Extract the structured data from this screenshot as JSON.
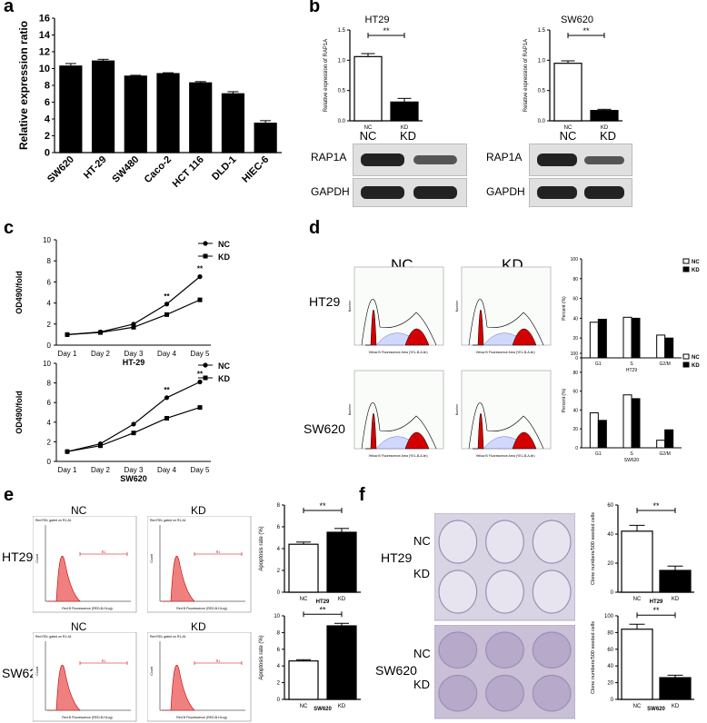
{
  "panel_letters": {
    "a": "a",
    "b": "b",
    "c": "c",
    "d": "d",
    "e": "e",
    "f": "f"
  },
  "chart_data": [
    {
      "id": "a",
      "type": "bar",
      "categories": [
        "SW620",
        "HT-29",
        "SW480",
        "Caco-2",
        "HCT 116",
        "DLD-1",
        "HIEC-6"
      ],
      "values": [
        10.3,
        10.9,
        9.1,
        9.4,
        8.3,
        7.0,
        3.5
      ],
      "errors": [
        0.3,
        0.2,
        0.1,
        0.1,
        0.15,
        0.25,
        0.3
      ],
      "ylabel": "Relative expression ratio",
      "ylim": [
        0,
        16
      ],
      "yticks": [
        "0",
        "2",
        "4",
        "6",
        "8",
        "10",
        "12",
        "14",
        "16"
      ]
    },
    {
      "id": "b-ht29",
      "type": "bar",
      "title": "HT29",
      "categories": [
        "NC",
        "KD"
      ],
      "values": [
        1.06,
        0.31
      ],
      "errors": [
        0.05,
        0.06
      ],
      "ylabel": "Relative expression of RAP1A",
      "ylim": [
        0,
        1.5
      ],
      "yticks": [
        "0.0",
        "0.5",
        "1.0",
        "1.5"
      ],
      "significance": "**",
      "sub_labels": [
        "NC",
        "KD"
      ]
    },
    {
      "id": "b-sw620",
      "type": "bar",
      "title": "SW620",
      "categories": [
        "NC",
        "KD"
      ],
      "values": [
        0.95,
        0.17
      ],
      "errors": [
        0.04,
        0.02
      ],
      "ylabel": "Relative expression of RAP1A",
      "ylim": [
        0,
        1.5
      ],
      "yticks": [
        "0.0",
        "0.5",
        "1.0",
        "1.5"
      ],
      "significance": "**",
      "sub_labels": [
        "NC",
        "KD"
      ]
    },
    {
      "id": "c-ht29",
      "type": "line",
      "xlabel": "HT-29",
      "ylabel": "OD490/fold",
      "ylim": [
        0,
        10
      ],
      "yticks": [
        "0",
        "2",
        "4",
        "6",
        "8",
        "10"
      ],
      "categories": [
        "Day 1",
        "Day 2",
        "Day 3",
        "Day 4",
        "Day 5"
      ],
      "series": [
        {
          "name": "NC",
          "values": [
            1.0,
            1.25,
            2.0,
            3.9,
            6.5
          ]
        },
        {
          "name": "KD",
          "values": [
            1.0,
            1.2,
            1.7,
            2.9,
            4.3
          ]
        }
      ],
      "annotations": [
        "**",
        "**"
      ]
    },
    {
      "id": "c-sw620",
      "type": "line",
      "xlabel": "SW620",
      "ylabel": "OD490/fold",
      "ylim": [
        0,
        10
      ],
      "yticks": [
        "0",
        "2",
        "4",
        "6",
        "8",
        "10"
      ],
      "categories": [
        "Day 1",
        "Day 2",
        "Day 3",
        "Day 4",
        "Day 5"
      ],
      "series": [
        {
          "name": "NC",
          "values": [
            1.0,
            1.8,
            3.8,
            6.5,
            8.1
          ]
        },
        {
          "name": "KD",
          "values": [
            1.0,
            1.6,
            2.9,
            4.4,
            5.5
          ]
        }
      ],
      "annotations": [
        "**",
        "**"
      ]
    },
    {
      "id": "d-ht29",
      "type": "bar",
      "xlabel": "HT29",
      "ylabel": "Percent (%)",
      "ylim": [
        0,
        100
      ],
      "yticks": [
        "0",
        "20",
        "40",
        "60",
        "80",
        "100"
      ],
      "categories": [
        "G1",
        "S",
        "G2/M"
      ],
      "series": [
        {
          "name": "NC",
          "values": [
            36,
            41,
            23
          ]
        },
        {
          "name": "KD",
          "values": [
            39,
            40,
            20
          ]
        }
      ]
    },
    {
      "id": "d-sw620",
      "type": "bar",
      "xlabel": "SW620",
      "ylabel": "Percent (%)",
      "ylim": [
        0,
        100
      ],
      "yticks": [
        "0",
        "20",
        "40",
        "60",
        "80",
        "100"
      ],
      "categories": [
        "G1",
        "S",
        "G2/M"
      ],
      "series": [
        {
          "name": "NC",
          "values": [
            37,
            56,
            8
          ]
        },
        {
          "name": "KD",
          "values": [
            29,
            52,
            19
          ]
        }
      ]
    },
    {
      "id": "e-ht29",
      "type": "bar",
      "xlabel": "HT29",
      "ylabel": "Apoptosis rate (%)",
      "ylim": [
        0,
        8
      ],
      "yticks": [
        "0",
        "2",
        "4",
        "6",
        "8"
      ],
      "categories": [
        "NC",
        "KD"
      ],
      "values": [
        4.4,
        5.5
      ],
      "errors": [
        0.2,
        0.35
      ],
      "significance": "**"
    },
    {
      "id": "e-sw620",
      "type": "bar",
      "xlabel": "SW620",
      "ylabel": "Apoptosis rate (%)",
      "ylim": [
        0,
        10
      ],
      "yticks": [
        "0",
        "2",
        "4",
        "6",
        "8",
        "10"
      ],
      "categories": [
        "NC",
        "KD"
      ],
      "values": [
        4.6,
        8.8
      ],
      "errors": [
        0.15,
        0.3
      ],
      "significance": "**"
    },
    {
      "id": "f-ht29",
      "type": "bar",
      "xlabel": "HT29",
      "ylabel": "Clone numbers/500 seeded cells",
      "ylim": [
        0,
        60
      ],
      "yticks": [
        "0",
        "20",
        "40",
        "60"
      ],
      "categories": [
        "NC",
        "KD"
      ],
      "values": [
        42,
        15
      ],
      "errors": [
        4,
        3
      ],
      "significance": "**"
    },
    {
      "id": "f-sw620",
      "type": "bar",
      "xlabel": "SW620",
      "ylabel": "Clone numbers/500 seeded cells",
      "ylim": [
        0,
        100
      ],
      "yticks": [
        "0",
        "20",
        "40",
        "60",
        "80",
        "100"
      ],
      "categories": [
        "NC",
        "KD"
      ],
      "values": [
        84,
        26
      ],
      "errors": [
        6,
        3
      ],
      "significance": "**"
    }
  ],
  "blots": {
    "rap1a": "RAP1A",
    "gapdh": "GAPDH"
  },
  "flow_headers": {
    "nc": "NC",
    "kd": "KD"
  },
  "row_labels": {
    "ht29": "HT29",
    "sw620": "SW620"
  },
  "legend": {
    "nc": "NC",
    "kd": "KD"
  },
  "flow_axis": {
    "d_x": "Yellow B Fluorescence Area (YEL-B-A-lin)",
    "d_y": "Number",
    "e_x": "Red B Fluorescence (RED-B-HLog)",
    "e_y": "Count",
    "e_title": "Red RDL gated on R1-A1",
    "gate": "R1"
  },
  "colors": {
    "red": "#d40000",
    "accent_fill": "#f08080",
    "hatch": "#4a4aa8"
  }
}
